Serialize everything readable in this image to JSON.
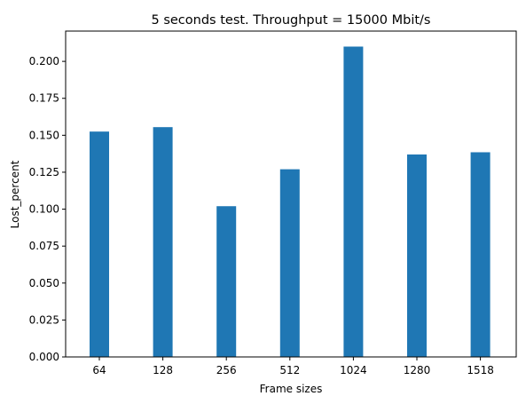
{
  "chart_data": {
    "type": "bar",
    "title": "5 seconds test. Throughput = 15000 Mbit/s",
    "xlabel": "Frame sizes",
    "ylabel": "Lost_percent",
    "categories": [
      "64",
      "128",
      "256",
      "512",
      "1024",
      "1280",
      "1518"
    ],
    "values": [
      0.1525,
      0.1555,
      0.102,
      0.127,
      0.21,
      0.137,
      0.1385
    ],
    "ylim": [
      0,
      0.2205
    ],
    "yticks": [
      0.0,
      0.025,
      0.05,
      0.075,
      0.1,
      0.125,
      0.15,
      0.175,
      0.2
    ],
    "ytick_labels": [
      "0.000",
      "0.025",
      "0.050",
      "0.075",
      "0.100",
      "0.125",
      "0.150",
      "0.175",
      "0.200"
    ],
    "bar_color": "#1f77b4",
    "grid": false,
    "legend": false
  }
}
